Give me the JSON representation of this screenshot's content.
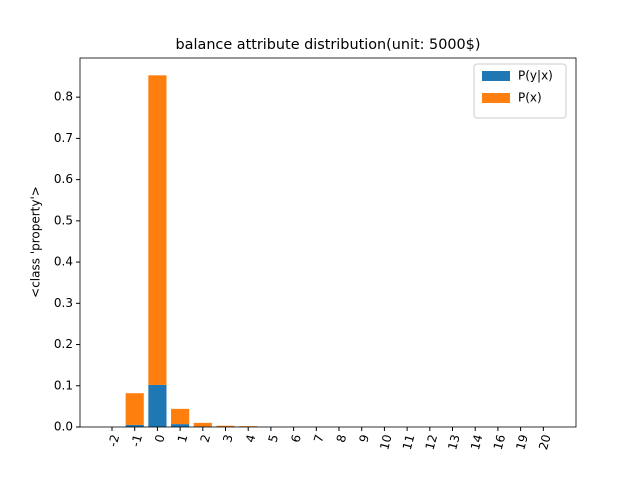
{
  "chart_data": {
    "type": "stacked-bar",
    "title": "balance attribute distribution(unit: 5000$)",
    "y_label": "<class 'property'>",
    "categories": [
      "-2",
      "-1",
      "0",
      "1",
      "2",
      "3",
      "4",
      "5",
      "6",
      "7",
      "8",
      "9",
      "10",
      "11",
      "12",
      "13",
      "14",
      "16",
      "19",
      "20"
    ],
    "series": [
      {
        "name": "P(y|x)",
        "color": "#1f77b4",
        "values": [
          0,
          0.005,
          0.102,
          0.007,
          0.001,
          0,
          0,
          0,
          0,
          0,
          0,
          0,
          0,
          0,
          0,
          0,
          0,
          0,
          0,
          0
        ]
      },
      {
        "name": "P(x)",
        "color": "#ff7f0e",
        "values": [
          0,
          0.077,
          0.751,
          0.037,
          0.009,
          0.003,
          0.002,
          0,
          0,
          0,
          0,
          0,
          0,
          0,
          0,
          0,
          0,
          0,
          0,
          0
        ]
      }
    ],
    "ylim": [
      0,
      0.895
    ],
    "yticks": [
      {
        "value": 0,
        "label": "0.0"
      },
      {
        "value": 0.1,
        "label": "0.1"
      },
      {
        "value": 0.2,
        "label": "0.2"
      },
      {
        "value": 0.3,
        "label": "0.3"
      },
      {
        "value": 0.4,
        "label": "0.4"
      },
      {
        "value": 0.5,
        "label": "0.5"
      },
      {
        "value": 0.6,
        "label": "0.6"
      },
      {
        "value": 0.7,
        "label": "0.7"
      },
      {
        "value": 0.8,
        "label": "0.8"
      }
    ],
    "legend": "upper right"
  }
}
